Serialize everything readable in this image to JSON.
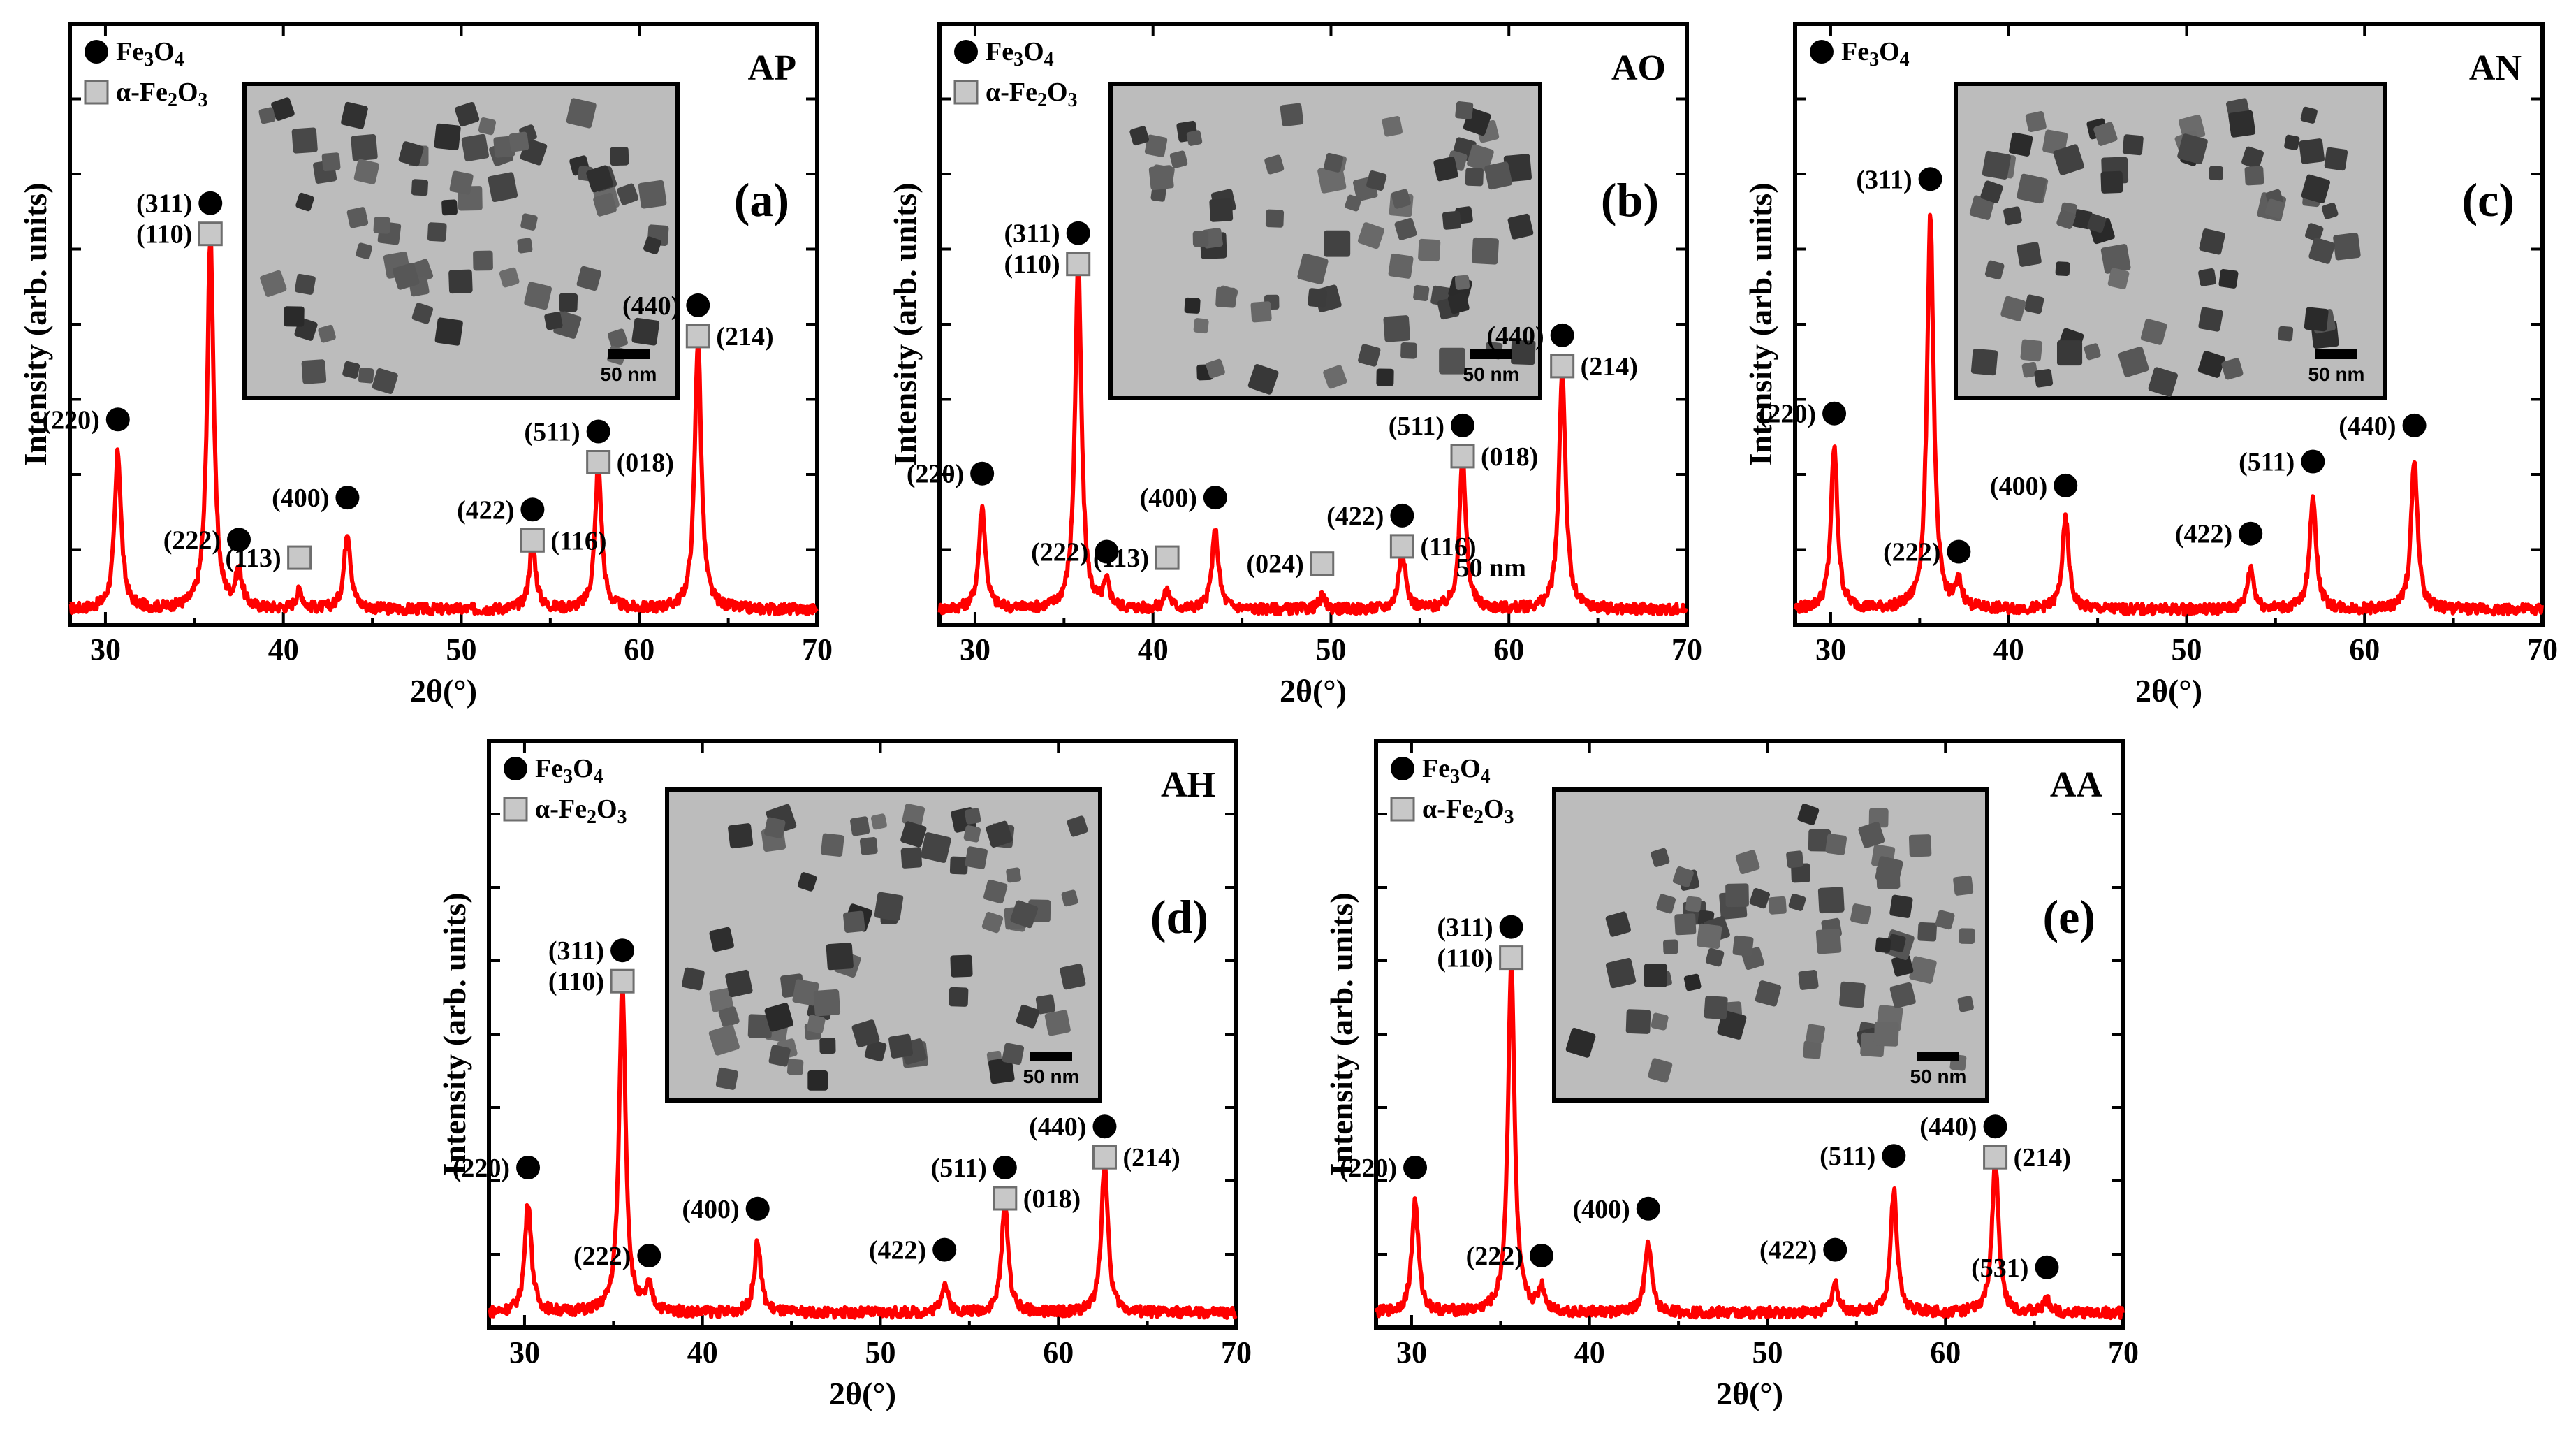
{
  "figure": {
    "x_axis_label": "2θ(°)",
    "y_axis_label": "Intensity (arb. units)",
    "legend_fe3o4": "Fe3O4",
    "legend_fe2o3": "α-Fe2O3",
    "scale_bar_label": "50 nm",
    "colors": {
      "curve": "#ff0000",
      "fe3o4_marker": "#000000",
      "fe2o3_marker": "#c8c8c8"
    }
  },
  "chart_data": [
    {
      "type": "line",
      "sample_code": "AP",
      "panel_letter": "(a)",
      "xlabel": "2θ(°)",
      "ylabel": "Intensity (arb. units)",
      "xlim": [
        28,
        70
      ],
      "ylim": [
        0,
        100
      ],
      "xticks": [
        30,
        40,
        50,
        60,
        70
      ],
      "legend": [
        "Fe3O4",
        "α-Fe2O3"
      ],
      "peaks": [
        {
          "x": 30.7,
          "y": 26,
          "label": "(220)",
          "phases": [
            "Fe3O4"
          ]
        },
        {
          "x": 35.9,
          "y": 62,
          "label": "(311)",
          "phases": [
            "Fe3O4"
          ]
        },
        {
          "x": 35.9,
          "y": 0,
          "label": "(110)",
          "phases": [
            "α-Fe2O3"
          ]
        },
        {
          "x": 37.5,
          "y": 6,
          "label": "(222)",
          "phases": [
            "Fe3O4"
          ]
        },
        {
          "x": 40.9,
          "y": 3,
          "label": "(113)",
          "phases": [
            "α-Fe2O3"
          ]
        },
        {
          "x": 43.6,
          "y": 13,
          "label": "(400)",
          "phases": [
            "Fe3O4"
          ]
        },
        {
          "x": 54.0,
          "y": 11,
          "label": "(422)",
          "phases": [
            "Fe3O4"
          ]
        },
        {
          "x": 54.0,
          "y": 0,
          "label": "(116)",
          "phases": [
            "α-Fe2O3"
          ]
        },
        {
          "x": 57.7,
          "y": 24,
          "label": "(511)",
          "phases": [
            "Fe3O4"
          ]
        },
        {
          "x": 57.7,
          "y": 0,
          "label": "(018)",
          "phases": [
            "α-Fe2O3"
          ]
        },
        {
          "x": 63.3,
          "y": 45,
          "label": "(440)",
          "phases": [
            "Fe3O4"
          ]
        },
        {
          "x": 63.3,
          "y": 0,
          "label": "(214)",
          "phases": [
            "α-Fe2O3"
          ]
        }
      ]
    },
    {
      "type": "line",
      "sample_code": "AO",
      "panel_letter": "(b)",
      "xlabel": "2θ(°)",
      "ylabel": "Intensity (arb. units)",
      "xlim": [
        28,
        70
      ],
      "ylim": [
        0,
        100
      ],
      "xticks": [
        30,
        40,
        50,
        60,
        70
      ],
      "legend": [
        "Fe3O4",
        "α-Fe2O3"
      ],
      "peaks": [
        {
          "x": 30.4,
          "y": 17,
          "label": "(220)",
          "phases": [
            "Fe3O4"
          ]
        },
        {
          "x": 35.8,
          "y": 57,
          "label": "(311)",
          "phases": [
            "Fe3O4"
          ]
        },
        {
          "x": 35.8,
          "y": 0,
          "label": "(110)",
          "phases": [
            "α-Fe2O3"
          ]
        },
        {
          "x": 37.4,
          "y": 4,
          "label": "(222)",
          "phases": [
            "Fe3O4"
          ]
        },
        {
          "x": 40.8,
          "y": 3,
          "label": "(113)",
          "phases": [
            "α-Fe2O3"
          ]
        },
        {
          "x": 43.5,
          "y": 13,
          "label": "(400)",
          "phases": [
            "Fe3O4"
          ]
        },
        {
          "x": 49.5,
          "y": 2,
          "label": "(024)",
          "phases": [
            "α-Fe2O3"
          ]
        },
        {
          "x": 54.0,
          "y": 10,
          "label": "(422)",
          "phases": [
            "Fe3O4"
          ]
        },
        {
          "x": 54.0,
          "y": 0,
          "label": "(116)",
          "phases": [
            "α-Fe2O3"
          ]
        },
        {
          "x": 57.4,
          "y": 25,
          "label": "(511)",
          "phases": [
            "Fe3O4"
          ]
        },
        {
          "x": 57.4,
          "y": 0,
          "label": "(018)",
          "phases": [
            "α-Fe2O3"
          ]
        },
        {
          "x": 63.0,
          "y": 40,
          "label": "(440)",
          "phases": [
            "Fe3O4"
          ]
        },
        {
          "x": 63.0,
          "y": 0,
          "label": "(214)",
          "phases": [
            "α-Fe2O3"
          ]
        }
      ],
      "annotations": [
        "50 nm"
      ]
    },
    {
      "type": "line",
      "sample_code": "AN",
      "panel_letter": "(c)",
      "xlabel": "2θ(°)",
      "ylabel": "Intensity (arb. units)",
      "xlim": [
        28,
        70
      ],
      "ylim": [
        0,
        100
      ],
      "xticks": [
        30,
        40,
        50,
        60,
        70
      ],
      "legend": [
        "Fe3O4"
      ],
      "peaks": [
        {
          "x": 30.2,
          "y": 27,
          "label": "(220)",
          "phases": [
            "Fe3O4"
          ]
        },
        {
          "x": 35.6,
          "y": 66,
          "label": "(311)",
          "phases": [
            "Fe3O4"
          ]
        },
        {
          "x": 37.2,
          "y": 4,
          "label": "(222)",
          "phases": [
            "Fe3O4"
          ]
        },
        {
          "x": 43.2,
          "y": 15,
          "label": "(400)",
          "phases": [
            "Fe3O4"
          ]
        },
        {
          "x": 53.6,
          "y": 7,
          "label": "(422)",
          "phases": [
            "Fe3O4"
          ]
        },
        {
          "x": 57.1,
          "y": 19,
          "label": "(511)",
          "phases": [
            "Fe3O4"
          ]
        },
        {
          "x": 62.8,
          "y": 25,
          "label": "(440)",
          "phases": [
            "Fe3O4"
          ]
        }
      ]
    },
    {
      "type": "line",
      "sample_code": "AH",
      "panel_letter": "(d)",
      "xlabel": "2θ(°)",
      "ylabel": "Intensity (arb. units)",
      "xlim": [
        28,
        70
      ],
      "ylim": [
        0,
        100
      ],
      "xticks": [
        30,
        40,
        50,
        60,
        70
      ],
      "legend": [
        "Fe3O4",
        "α-Fe2O3"
      ],
      "peaks": [
        {
          "x": 30.2,
          "y": 19,
          "label": "(220)",
          "phases": [
            "Fe3O4"
          ]
        },
        {
          "x": 35.5,
          "y": 56,
          "label": "(311)",
          "phases": [
            "Fe3O4"
          ]
        },
        {
          "x": 35.5,
          "y": 0,
          "label": "(110)",
          "phases": [
            "α-Fe2O3"
          ]
        },
        {
          "x": 37.0,
          "y": 4,
          "label": "(222)",
          "phases": [
            "Fe3O4"
          ]
        },
        {
          "x": 43.1,
          "y": 12,
          "label": "(400)",
          "phases": [
            "Fe3O4"
          ]
        },
        {
          "x": 53.6,
          "y": 5,
          "label": "(422)",
          "phases": [
            "Fe3O4"
          ]
        },
        {
          "x": 57.0,
          "y": 19,
          "label": "(511)",
          "phases": [
            "Fe3O4"
          ]
        },
        {
          "x": 57.0,
          "y": 0,
          "label": "(018)",
          "phases": [
            "α-Fe2O3"
          ]
        },
        {
          "x": 62.6,
          "y": 26,
          "label": "(440)",
          "phases": [
            "Fe3O4"
          ]
        },
        {
          "x": 62.6,
          "y": 0,
          "label": "(214)",
          "phases": [
            "α-Fe2O3"
          ]
        }
      ]
    },
    {
      "type": "line",
      "sample_code": "AA",
      "panel_letter": "(e)",
      "xlabel": "2θ(°)",
      "ylabel": "Intensity (arb. units)",
      "xlim": [
        28,
        70
      ],
      "ylim": [
        0,
        100
      ],
      "xticks": [
        30,
        40,
        50,
        60,
        70
      ],
      "legend": [
        "Fe3O4",
        "α-Fe2O3"
      ],
      "peaks": [
        {
          "x": 30.2,
          "y": 19,
          "label": "(220)",
          "phases": [
            "Fe3O4"
          ]
        },
        {
          "x": 35.6,
          "y": 60,
          "label": "(311)",
          "phases": [
            "Fe3O4"
          ]
        },
        {
          "x": 35.6,
          "y": 0,
          "label": "(110)",
          "phases": [
            "α-Fe2O3"
          ]
        },
        {
          "x": 37.3,
          "y": 4,
          "label": "(222)",
          "phases": [
            "Fe3O4"
          ]
        },
        {
          "x": 43.3,
          "y": 12,
          "label": "(400)",
          "phases": [
            "Fe3O4"
          ]
        },
        {
          "x": 53.8,
          "y": 5,
          "label": "(422)",
          "phases": [
            "Fe3O4"
          ]
        },
        {
          "x": 57.1,
          "y": 21,
          "label": "(511)",
          "phases": [
            "Fe3O4"
          ]
        },
        {
          "x": 62.8,
          "y": 26,
          "label": "(440)",
          "phases": [
            "Fe3O4"
          ]
        },
        {
          "x": 62.8,
          "y": 0,
          "label": "(214)",
          "phases": [
            "α-Fe2O3"
          ]
        },
        {
          "x": 65.7,
          "y": 2,
          "label": "(531)",
          "phases": [
            "Fe3O4"
          ]
        }
      ]
    }
  ]
}
